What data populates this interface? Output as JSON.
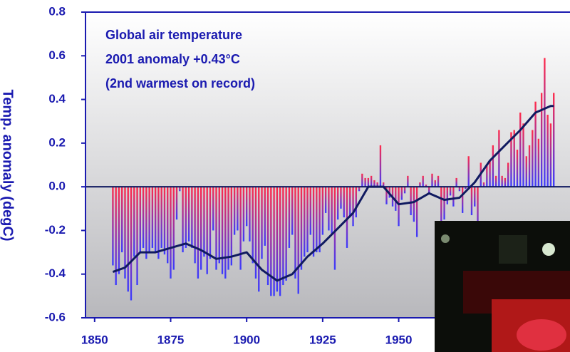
{
  "chart_data": {
    "type": "bar",
    "title_lines": [
      "Global air temperature",
      "2001 anomaly +0.43°C",
      "(2nd warmest on record)"
    ],
    "y_label": "Temp. anomaly (degC)",
    "x": [
      1856,
      1857,
      1858,
      1859,
      1860,
      1861,
      1862,
      1863,
      1864,
      1865,
      1866,
      1867,
      1868,
      1869,
      1870,
      1871,
      1872,
      1873,
      1874,
      1875,
      1876,
      1877,
      1878,
      1879,
      1880,
      1881,
      1882,
      1883,
      1884,
      1885,
      1886,
      1887,
      1888,
      1889,
      1890,
      1891,
      1892,
      1893,
      1894,
      1895,
      1896,
      1897,
      1898,
      1899,
      1900,
      1901,
      1902,
      1903,
      1904,
      1905,
      1906,
      1907,
      1908,
      1909,
      1910,
      1911,
      1912,
      1913,
      1914,
      1915,
      1916,
      1917,
      1918,
      1919,
      1920,
      1921,
      1922,
      1923,
      1924,
      1925,
      1926,
      1927,
      1928,
      1929,
      1930,
      1931,
      1932,
      1933,
      1934,
      1935,
      1936,
      1937,
      1938,
      1939,
      1940,
      1941,
      1942,
      1943,
      1944,
      1945,
      1946,
      1947,
      1948,
      1949,
      1950,
      1951,
      1952,
      1953,
      1954,
      1955,
      1956,
      1957,
      1958,
      1959,
      1960,
      1961,
      1962,
      1963,
      1964,
      1965,
      1966,
      1967,
      1968,
      1969,
      1970,
      1971,
      1972,
      1973,
      1974,
      1975,
      1976,
      1977,
      1978,
      1979,
      1980,
      1981,
      1982,
      1983,
      1984,
      1985,
      1986,
      1987,
      1988,
      1989,
      1990,
      1991,
      1992,
      1993,
      1994,
      1995,
      1996,
      1997,
      1998,
      1999,
      2000,
      2001
    ],
    "values": [
      -0.36,
      -0.45,
      -0.4,
      -0.3,
      -0.42,
      -0.48,
      -0.52,
      -0.32,
      -0.45,
      -0.3,
      -0.28,
      -0.33,
      -0.3,
      -0.28,
      -0.3,
      -0.33,
      -0.28,
      -0.31,
      -0.35,
      -0.42,
      -0.38,
      -0.15,
      -0.02,
      -0.3,
      -0.28,
      -0.25,
      -0.28,
      -0.35,
      -0.42,
      -0.38,
      -0.32,
      -0.4,
      -0.33,
      -0.2,
      -0.38,
      -0.35,
      -0.4,
      -0.42,
      -0.38,
      -0.36,
      -0.22,
      -0.2,
      -0.38,
      -0.25,
      -0.18,
      -0.25,
      -0.35,
      -0.42,
      -0.48,
      -0.33,
      -0.27,
      -0.45,
      -0.5,
      -0.5,
      -0.48,
      -0.5,
      -0.45,
      -0.43,
      -0.28,
      -0.22,
      -0.42,
      -0.49,
      -0.38,
      -0.32,
      -0.3,
      -0.22,
      -0.32,
      -0.3,
      -0.3,
      -0.22,
      -0.12,
      -0.2,
      -0.22,
      -0.38,
      -0.15,
      -0.1,
      -0.14,
      -0.28,
      -0.14,
      -0.18,
      -0.14,
      -0.02,
      0.06,
      0.04,
      0.04,
      0.05,
      0.03,
      0.02,
      0.19,
      0.02,
      -0.08,
      -0.05,
      -0.09,
      -0.11,
      -0.18,
      -0.06,
      -0.03,
      0.05,
      -0.13,
      -0.16,
      -0.23,
      0.02,
      0.05,
      0.01,
      -0.03,
      0.06,
      0.03,
      0.05,
      -0.22,
      -0.15,
      -0.08,
      -0.04,
      -0.09,
      0.04,
      -0.02,
      -0.12,
      -0.01,
      0.14,
      -0.13,
      -0.09,
      -0.21,
      0.11,
      0.02,
      0.1,
      0.12,
      0.19,
      0.05,
      0.26,
      0.05,
      0.04,
      0.11,
      0.25,
      0.26,
      0.17,
      0.34,
      0.29,
      0.14,
      0.19,
      0.26,
      0.39,
      0.22,
      0.43,
      0.59,
      0.33,
      0.29,
      0.43
    ],
    "bar_colors": [
      "#ff2a4a",
      "#3a3aff"
    ],
    "smooth": {
      "color": "#101a60",
      "x": [
        1856,
        1860,
        1865,
        1870,
        1875,
        1880,
        1885,
        1890,
        1895,
        1900,
        1905,
        1910,
        1915,
        1920,
        1925,
        1930,
        1935,
        1940,
        1945,
        1950,
        1955,
        1960,
        1965,
        1970,
        1975,
        1980,
        1985,
        1990,
        1995,
        2000,
        2001
      ],
      "values": [
        -0.39,
        -0.37,
        -0.3,
        -0.3,
        -0.28,
        -0.26,
        -0.29,
        -0.33,
        -0.32,
        -0.3,
        -0.38,
        -0.43,
        -0.4,
        -0.32,
        -0.26,
        -0.19,
        -0.12,
        0.0,
        0.0,
        -0.08,
        -0.07,
        -0.03,
        -0.06,
        -0.05,
        0.02,
        0.12,
        0.19,
        0.26,
        0.34,
        0.37,
        0.37
      ]
    },
    "xlim": [
      1847,
      2004
    ],
    "xticks": [
      1850,
      1875,
      1900,
      1925,
      1950
    ],
    "ylim": [
      -0.6,
      0.8
    ],
    "yticks": [
      -0.6,
      -0.4,
      -0.2,
      {
        "value": 0,
        "label": "0.0"
      },
      0.2,
      0.4,
      0.6,
      0.8
    ]
  }
}
